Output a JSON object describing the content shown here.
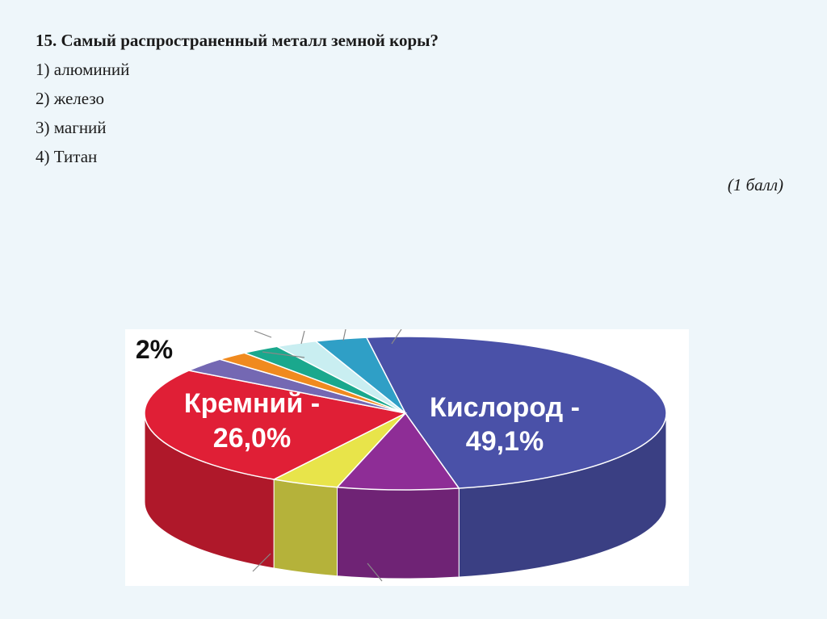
{
  "question": {
    "title": "15. Самый распространенный металл земной коры?"
  },
  "options": [
    "1) алюминий",
    "2) железо",
    "3) магний",
    "4) Титан"
  ],
  "score": "(1 балл)",
  "chart_data": {
    "type": "pie",
    "style": "3d",
    "slices": [
      {
        "label_top": "Кислород -",
        "label_bottom": "49,1%",
        "value": 49.1,
        "color": "#4a51a8"
      },
      {
        "label_top": "",
        "label_bottom": "",
        "value": 7.5,
        "color": "#8e2d96"
      },
      {
        "label_top": "",
        "label_bottom": "",
        "value": 4.2,
        "color": "#e8e44a"
      },
      {
        "label_top": "Кремний -",
        "label_bottom": "26,0%",
        "value": 26.0,
        "color": "#e01f36"
      },
      {
        "label_top": "",
        "label_bottom": "",
        "value": 3.0,
        "color": "#7468b3"
      },
      {
        "label_top": "",
        "label_bottom": "",
        "value": 2.0,
        "color": "#f08a1f"
      },
      {
        "label_top": "",
        "label_bottom": "",
        "value": 2.4,
        "color": "#1aa88d"
      },
      {
        "label_top": "",
        "label_bottom": "",
        "value": 2.6,
        "color": "#c9eef1"
      },
      {
        "label_top": "",
        "label_bottom": "",
        "value": 3.2,
        "color": "#2f9fc6"
      }
    ],
    "callout_label": "2%"
  }
}
